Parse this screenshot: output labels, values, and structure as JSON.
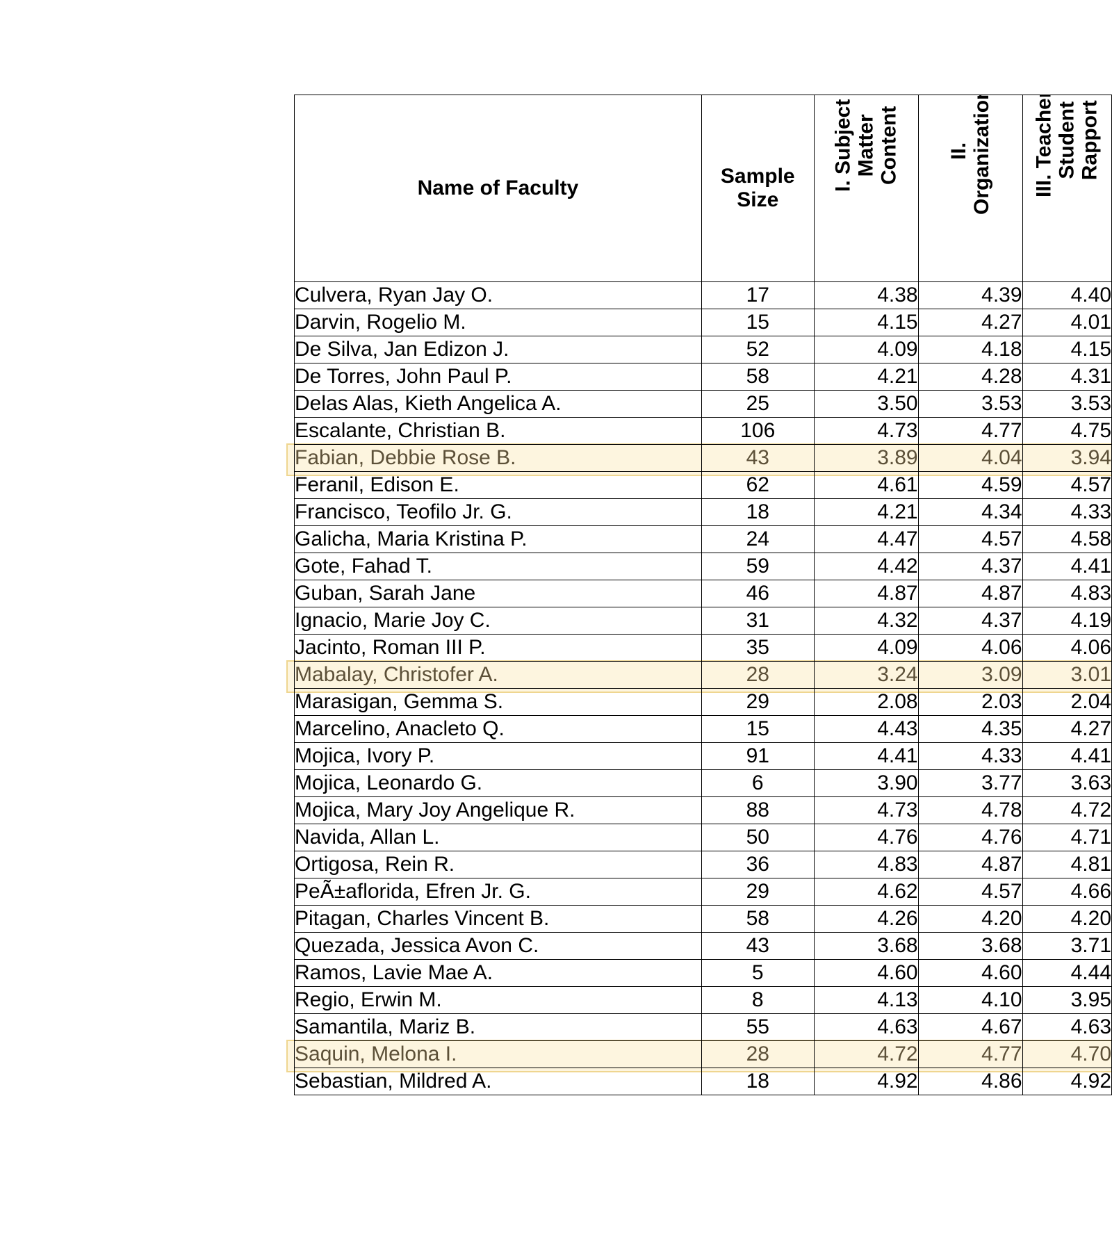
{
  "table": {
    "headers": {
      "name": "Name of Faculty",
      "sample": "Sample\nSize",
      "c1": "I. Subject\nMatter\nContent",
      "c2": "II.\nOrganization",
      "c3": "III. Teacher-\nStudent\nRapport"
    },
    "rows": [
      {
        "name": "Culvera, Ryan Jay O.",
        "sample": "17",
        "c1": "4.38",
        "c2": "4.39",
        "c3": "4.40"
      },
      {
        "name": "Darvin, Rogelio M.",
        "sample": "15",
        "c1": "4.15",
        "c2": "4.27",
        "c3": "4.01"
      },
      {
        "name": "De Silva, Jan Edizon J.",
        "sample": "52",
        "c1": "4.09",
        "c2": "4.18",
        "c3": "4.15"
      },
      {
        "name": "De Torres, John Paul P.",
        "sample": "58",
        "c1": "4.21",
        "c2": "4.28",
        "c3": "4.31"
      },
      {
        "name": "Delas Alas, Kieth Angelica A.",
        "sample": "25",
        "c1": "3.50",
        "c2": "3.53",
        "c3": "3.53"
      },
      {
        "name": "Escalante, Christian B.",
        "sample": "106",
        "c1": "4.73",
        "c2": "4.77",
        "c3": "4.75"
      },
      {
        "name": "Fabian, Debbie Rose B.",
        "sample": "43",
        "c1": "3.89",
        "c2": "4.04",
        "c3": "3.94",
        "highlighted": true
      },
      {
        "name": "Feranil, Edison E.",
        "sample": "62",
        "c1": "4.61",
        "c2": "4.59",
        "c3": "4.57"
      },
      {
        "name": "Francisco, Teofilo Jr. G.",
        "sample": "18",
        "c1": "4.21",
        "c2": "4.34",
        "c3": "4.33"
      },
      {
        "name": "Galicha, Maria Kristina P.",
        "sample": "24",
        "c1": "4.47",
        "c2": "4.57",
        "c3": "4.58"
      },
      {
        "name": "Gote, Fahad T.",
        "sample": "59",
        "c1": "4.42",
        "c2": "4.37",
        "c3": "4.41"
      },
      {
        "name": "Guban, Sarah Jane",
        "sample": "46",
        "c1": "4.87",
        "c2": "4.87",
        "c3": "4.83"
      },
      {
        "name": "Ignacio, Marie Joy C.",
        "sample": "31",
        "c1": "4.32",
        "c2": "4.37",
        "c3": "4.19"
      },
      {
        "name": "Jacinto, Roman III P.",
        "sample": "35",
        "c1": "4.09",
        "c2": "4.06",
        "c3": "4.06"
      },
      {
        "name": "Mabalay, Christofer A.",
        "sample": "28",
        "c1": "3.24",
        "c2": "3.09",
        "c3": "3.01",
        "highlighted": true
      },
      {
        "name": "Marasigan, Gemma S.",
        "sample": "29",
        "c1": "2.08",
        "c2": "2.03",
        "c3": "2.04"
      },
      {
        "name": "Marcelino, Anacleto Q.",
        "sample": "15",
        "c1": "4.43",
        "c2": "4.35",
        "c3": "4.27"
      },
      {
        "name": "Mojica, Ivory P.",
        "sample": "91",
        "c1": "4.41",
        "c2": "4.33",
        "c3": "4.41"
      },
      {
        "name": "Mojica, Leonardo G.",
        "sample": "6",
        "c1": "3.90",
        "c2": "3.77",
        "c3": "3.63"
      },
      {
        "name": "Mojica, Mary Joy Angelique R.",
        "sample": "88",
        "c1": "4.73",
        "c2": "4.78",
        "c3": "4.72"
      },
      {
        "name": "Navida, Allan L.",
        "sample": "50",
        "c1": "4.76",
        "c2": "4.76",
        "c3": "4.71"
      },
      {
        "name": "Ortigosa, Rein R.",
        "sample": "36",
        "c1": "4.83",
        "c2": "4.87",
        "c3": "4.81"
      },
      {
        "name": "PeÃ±aflorida, Efren Jr. G.",
        "sample": "29",
        "c1": "4.62",
        "c2": "4.57",
        "c3": "4.66"
      },
      {
        "name": "Pitagan, Charles Vincent B.",
        "sample": "58",
        "c1": "4.26",
        "c2": "4.20",
        "c3": "4.20"
      },
      {
        "name": "Quezada, Jessica Avon C.",
        "sample": "43",
        "c1": "3.68",
        "c2": "3.68",
        "c3": "3.71"
      },
      {
        "name": "Ramos, Lavie Mae A.",
        "sample": "5",
        "c1": "4.60",
        "c2": "4.60",
        "c3": "4.44"
      },
      {
        "name": "Regio, Erwin M.",
        "sample": "8",
        "c1": "4.13",
        "c2": "4.10",
        "c3": "3.95"
      },
      {
        "name": "Samantila, Mariz B.",
        "sample": "55",
        "c1": "4.63",
        "c2": "4.67",
        "c3": "4.63"
      },
      {
        "name": "Saquin, Melona I.",
        "sample": "28",
        "c1": "4.72",
        "c2": "4.77",
        "c3": "4.70",
        "highlighted": true
      },
      {
        "name": "Sebastian, Mildred A.",
        "sample": "18",
        "c1": "4.92",
        "c2": "4.86",
        "c3": "4.92"
      }
    ]
  }
}
